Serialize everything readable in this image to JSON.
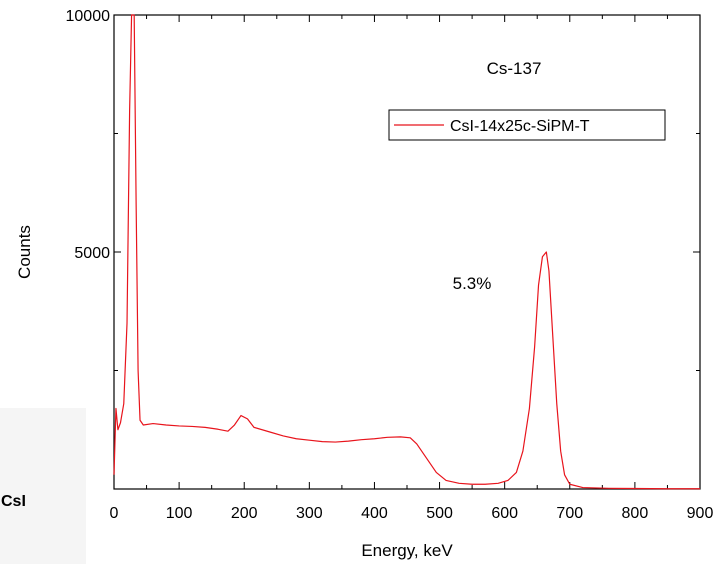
{
  "chart_data": {
    "type": "line",
    "title": "",
    "annotations": [
      "Cs-137",
      "5.3%"
    ],
    "xlabel": "Energy, keV",
    "ylabel": "Counts",
    "xlim": [
      0,
      900
    ],
    "ylim": [
      0,
      10000
    ],
    "x_ticks": [
      0,
      100,
      200,
      300,
      400,
      500,
      600,
      700,
      800,
      900
    ],
    "y_ticks": [
      5000,
      10000
    ],
    "grid": false,
    "legend_position": "top-right",
    "series": [
      {
        "name": "CsI-14x25c-SiPM-T",
        "color": "#e8141c",
        "points": [
          [
            0,
            300
          ],
          [
            3,
            1700
          ],
          [
            6,
            1250
          ],
          [
            10,
            1400
          ],
          [
            15,
            1800
          ],
          [
            20,
            3500
          ],
          [
            24,
            8000
          ],
          [
            27,
            10000
          ],
          [
            31,
            10000
          ],
          [
            34,
            6000
          ],
          [
            37,
            2500
          ],
          [
            40,
            1450
          ],
          [
            45,
            1350
          ],
          [
            60,
            1380
          ],
          [
            80,
            1350
          ],
          [
            100,
            1330
          ],
          [
            120,
            1320
          ],
          [
            140,
            1300
          ],
          [
            160,
            1260
          ],
          [
            175,
            1220
          ],
          [
            185,
            1350
          ],
          [
            195,
            1550
          ],
          [
            205,
            1480
          ],
          [
            215,
            1300
          ],
          [
            240,
            1200
          ],
          [
            260,
            1120
          ],
          [
            280,
            1060
          ],
          [
            300,
            1030
          ],
          [
            320,
            1000
          ],
          [
            340,
            990
          ],
          [
            360,
            1010
          ],
          [
            380,
            1040
          ],
          [
            400,
            1060
          ],
          [
            420,
            1090
          ],
          [
            440,
            1100
          ],
          [
            455,
            1080
          ],
          [
            465,
            950
          ],
          [
            480,
            650
          ],
          [
            495,
            350
          ],
          [
            510,
            180
          ],
          [
            530,
            120
          ],
          [
            550,
            100
          ],
          [
            570,
            100
          ],
          [
            590,
            120
          ],
          [
            605,
            180
          ],
          [
            618,
            350
          ],
          [
            628,
            800
          ],
          [
            638,
            1700
          ],
          [
            646,
            3000
          ],
          [
            652,
            4300
          ],
          [
            658,
            4900
          ],
          [
            664,
            5000
          ],
          [
            668,
            4600
          ],
          [
            674,
            3200
          ],
          [
            680,
            1800
          ],
          [
            686,
            800
          ],
          [
            692,
            300
          ],
          [
            700,
            100
          ],
          [
            720,
            30
          ],
          [
            760,
            15
          ],
          [
            800,
            10
          ],
          [
            850,
            5
          ],
          [
            900,
            5
          ]
        ]
      }
    ]
  },
  "side_label": "CsI"
}
